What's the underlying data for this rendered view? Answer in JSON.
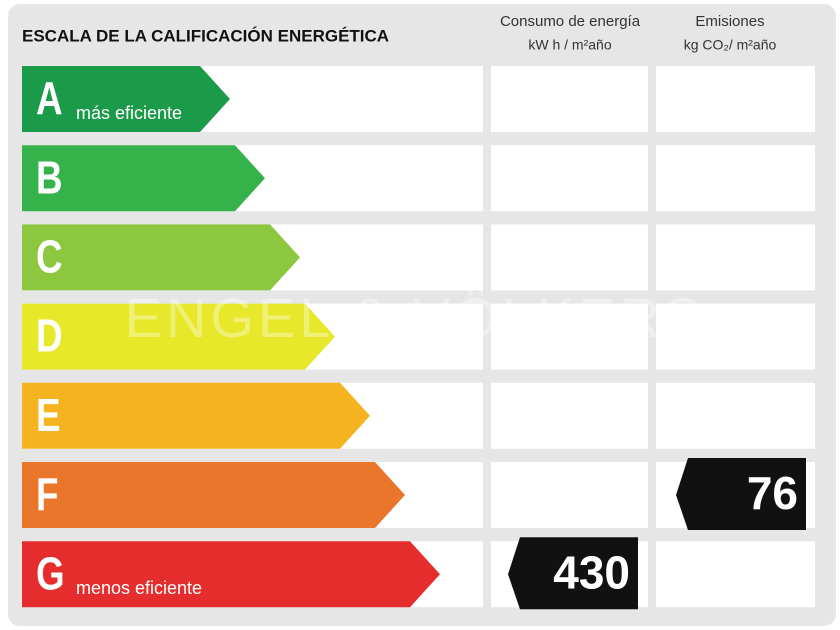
{
  "title": "ESCALA DE LA CALIFICACIÓN ENERGÉTICA",
  "columns": [
    {
      "name": "Consumo de energía",
      "unit": "kW h / m²año"
    },
    {
      "name": "Emisiones",
      "unit": "kg CO₂/ m²año"
    }
  ],
  "watermark": "ENGEL & VÖLKERS",
  "rows": [
    {
      "letter": "A",
      "note": "más eficiente",
      "color": "#1b9a4a"
    },
    {
      "letter": "B",
      "color": "#35b24a"
    },
    {
      "letter": "C",
      "color": "#8dc63f"
    },
    {
      "letter": "D",
      "color": "#e7e82a"
    },
    {
      "letter": "E",
      "color": "#f5b31f"
    },
    {
      "letter": "F",
      "color": "#e9762b",
      "emisiones": 76
    },
    {
      "letter": "G",
      "note": "menos eficiente",
      "color": "#e42d2c",
      "consumo": 430
    }
  ]
}
